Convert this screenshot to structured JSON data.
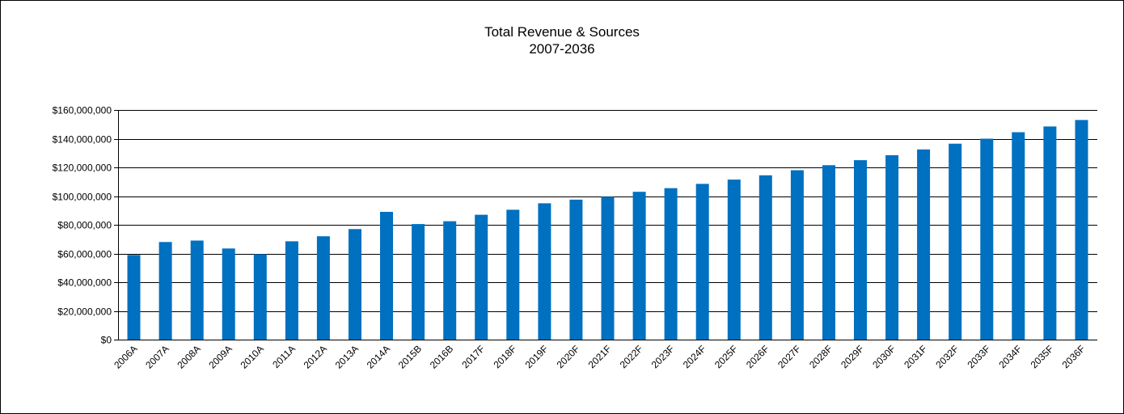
{
  "chart_data": {
    "type": "bar",
    "title": "Total Revenue & Sources",
    "subtitle": "2007-2036",
    "xlabel": "",
    "ylabel": "",
    "ylim": [
      0,
      160000000
    ],
    "yticks": [
      "$0",
      "$20,000,000",
      "$40,000,000",
      "$60,000,000",
      "$80,000,000",
      "$100,000,000",
      "$120,000,000",
      "$140,000,000",
      "$160,000,000"
    ],
    "grid": true,
    "bar_color": "#0070C0",
    "categories": [
      "2006A",
      "2007A",
      "2008A",
      "2009A",
      "2010A",
      "2011A",
      "2012A",
      "2013A",
      "2014A",
      "2015B",
      "2016B",
      "2017F",
      "2018F",
      "2019F",
      "2020F",
      "2021F",
      "2022F",
      "2023F",
      "2024F",
      "2025F",
      "2026F",
      "2027F",
      "2028F",
      "2029F",
      "2030F",
      "2031F",
      "2032F",
      "2033F",
      "2034F",
      "2035F",
      "2036F"
    ],
    "values": [
      59000000,
      68000000,
      69000000,
      63500000,
      59500000,
      68500000,
      72000000,
      77000000,
      89000000,
      80500000,
      82500000,
      87000000,
      90500000,
      95000000,
      97500000,
      99500000,
      103000000,
      105500000,
      108500000,
      111500000,
      114500000,
      118000000,
      121500000,
      125000000,
      128500000,
      132500000,
      136500000,
      140000000,
      144500000,
      148500000,
      153000000
    ]
  }
}
